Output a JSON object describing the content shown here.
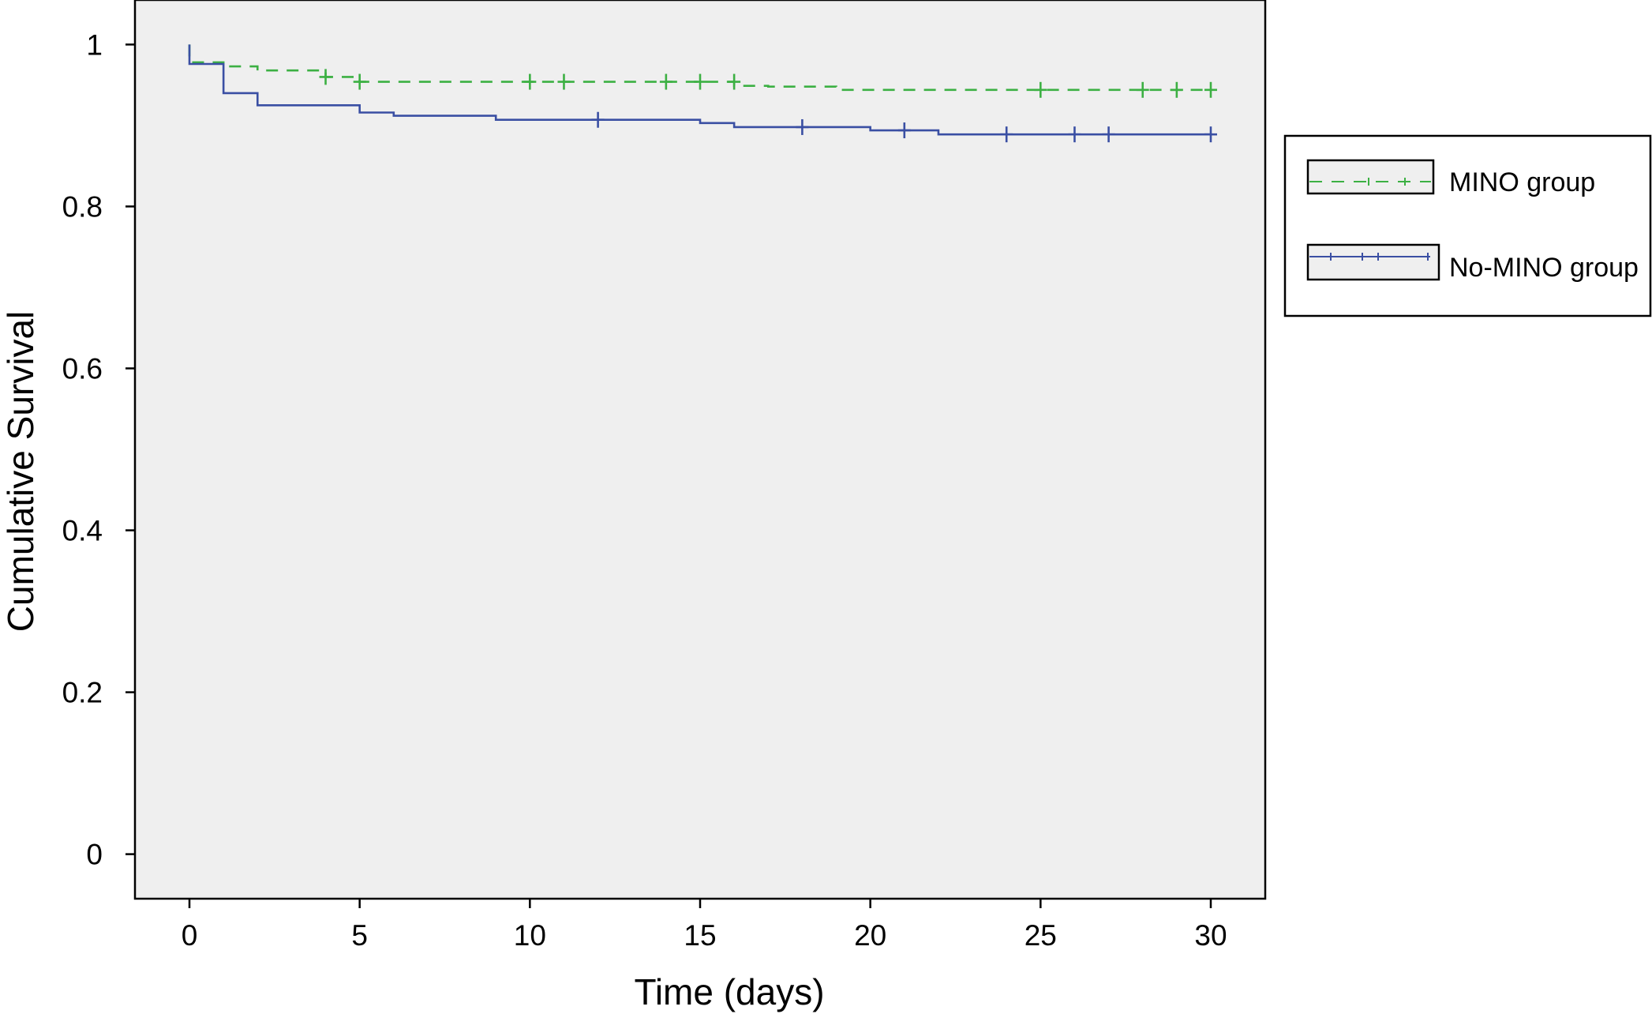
{
  "chart_data": {
    "type": "line",
    "title": "",
    "xlabel": "Time (days)",
    "ylabel": "Cumulative Survival",
    "xlim": [
      -1.6,
      31.6
    ],
    "ylim": [
      -0.055,
      1.055
    ],
    "x_ticks": [
      0,
      5,
      10,
      15,
      20,
      25,
      30
    ],
    "y_ticks": [
      0,
      0.2,
      0.4,
      0.6,
      0.8,
      1
    ],
    "y_tick_labels": [
      "0",
      "0.2",
      "0.4",
      "0.6",
      "0.8",
      "1"
    ],
    "x_tick_labels": [
      "0",
      "5",
      "10",
      "15",
      "20",
      "25",
      "30"
    ],
    "grid": false,
    "plot_background": "#efefef",
    "legend_position": "right",
    "series": [
      {
        "name": "MINO group",
        "color": "#3cb043",
        "line_style": "dashed",
        "step_x": [
          0,
          0,
          1,
          2,
          4,
          5,
          16,
          17,
          19,
          30
        ],
        "step_y": [
          1.0,
          0.978,
          0.973,
          0.968,
          0.96,
          0.954,
          0.949,
          0.948,
          0.944,
          0.944
        ],
        "censor_x": [
          4,
          5,
          10,
          11,
          14,
          15,
          16,
          25,
          28,
          29,
          30
        ],
        "censor_y": [
          0.96,
          0.954,
          0.954,
          0.954,
          0.954,
          0.954,
          0.954,
          0.944,
          0.944,
          0.944,
          0.944
        ]
      },
      {
        "name": "No-MINO group",
        "color": "#3a4fa3",
        "line_style": "solid",
        "step_x": [
          0,
          0,
          1,
          2,
          5,
          6,
          9,
          15,
          16,
          20,
          22,
          30
        ],
        "step_y": [
          1.0,
          0.976,
          0.94,
          0.925,
          0.916,
          0.912,
          0.907,
          0.903,
          0.898,
          0.894,
          0.889,
          0.889
        ],
        "censor_x": [
          12,
          18,
          21,
          24,
          26,
          27,
          30
        ],
        "censor_y": [
          0.907,
          0.898,
          0.894,
          0.889,
          0.889,
          0.889,
          0.889
        ]
      }
    ]
  }
}
